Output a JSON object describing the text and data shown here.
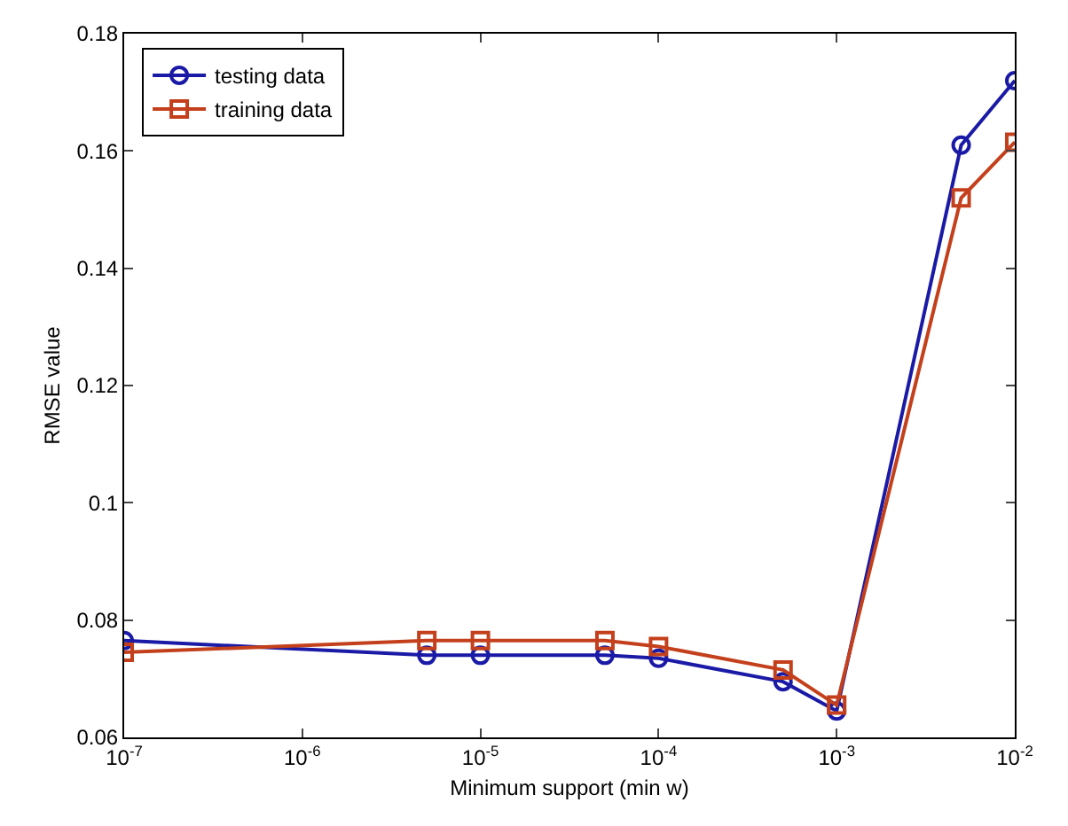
{
  "chart_data": {
    "type": "line",
    "xlabel": "Minimum support (min w)",
    "ylabel": "RMSE value",
    "log": "x",
    "grid": false,
    "legend": "top left",
    "x": [
      1e-07,
      5e-06,
      1e-05,
      5e-05,
      0.0001,
      0.0005,
      0.001,
      0.005,
      0.01
    ],
    "series": [
      {
        "name": "testing data",
        "color": "#1a1aa6",
        "marker": "circle",
        "values": [
          0.0765,
          0.074,
          0.074,
          0.074,
          0.0735,
          0.0695,
          0.0645,
          0.161,
          0.172
        ]
      },
      {
        "name": "training data",
        "color": "#c4401c",
        "marker": "square",
        "values": [
          0.0745,
          0.0765,
          0.0765,
          0.0765,
          0.0755,
          0.0715,
          0.0655,
          0.152,
          0.1615
        ]
      }
    ],
    "xlim": [
      1e-07,
      0.01
    ],
    "xticks": [
      {
        "value": 1e-07,
        "label": "10$^{-7}$"
      },
      {
        "value": 1e-06,
        "label": "10$^{-6}$"
      },
      {
        "value": 1e-05,
        "label": "10$^{-5}$"
      },
      {
        "value": 0.0001,
        "label": "10$^{-4}$"
      },
      {
        "value": 0.001,
        "label": "10$^{-3}$"
      },
      {
        "value": 0.01,
        "label": "10$^{-2}$"
      }
    ],
    "ylim": [
      0.06,
      0.18
    ],
    "yticks": [
      0.06,
      {
        "value": 0.08,
        "label": "0.08"
      },
      0.1,
      0.12,
      0.14,
      0.16,
      0.18
    ]
  }
}
